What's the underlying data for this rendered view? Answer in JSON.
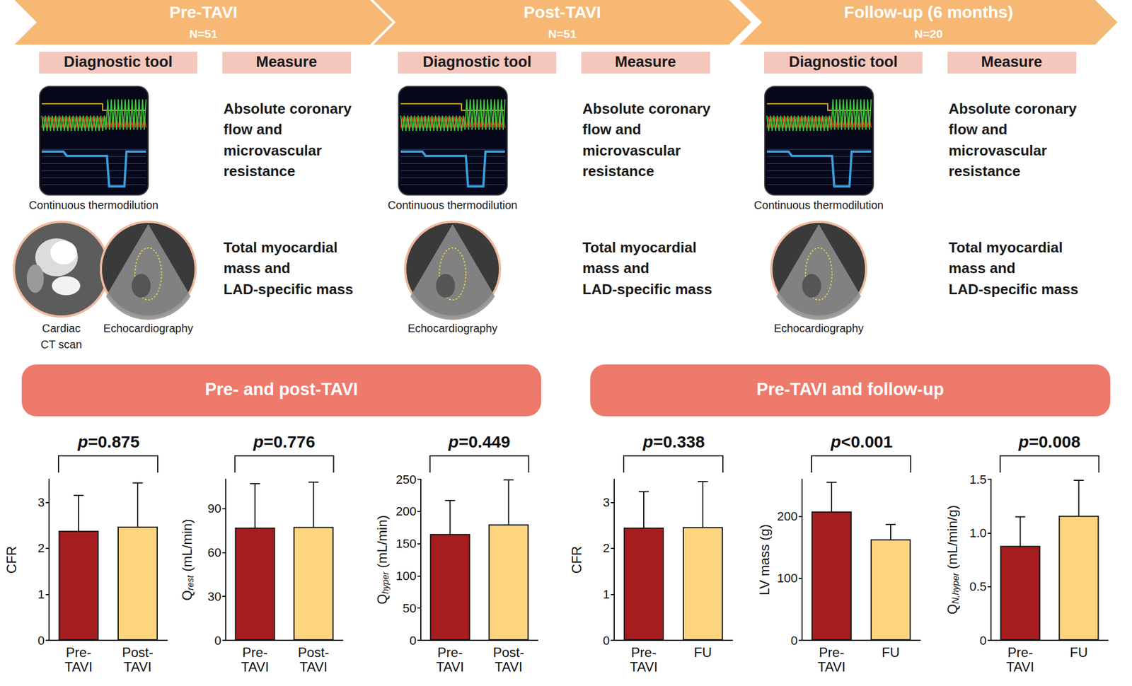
{
  "stages": [
    {
      "title": "Pre-TAVI",
      "n": "N=51",
      "tool_header": "Diagnostic tool",
      "measure_header": "Measure",
      "rows": [
        {
          "tools": [
            "Continuous thermodilution"
          ],
          "measure": [
            "Absolute coronary",
            "flow and",
            "microvascular",
            "resistance"
          ]
        },
        {
          "tools": [
            "Cardiac\nCT scan",
            "Echocardiography"
          ],
          "measure": [
            "Total myocardial",
            "mass and",
            "LAD-specific mass"
          ]
        }
      ]
    },
    {
      "title": "Post-TAVI",
      "n": "N=51",
      "tool_header": "Diagnostic tool",
      "measure_header": "Measure",
      "rows": [
        {
          "tools": [
            "Continuous thermodilution"
          ],
          "measure": [
            "Absolute coronary",
            "flow and",
            "microvascular",
            "resistance"
          ]
        },
        {
          "tools": [
            "Echocardiography"
          ],
          "measure": [
            "Total myocardial",
            "mass and",
            "LAD-specific mass"
          ]
        }
      ]
    },
    {
      "title": "Follow-up (6 months)",
      "n": "N=20",
      "tool_header": "Diagnostic tool",
      "measure_header": "Measure",
      "rows": [
        {
          "tools": [
            "Continuous thermodilution"
          ],
          "measure": [
            "Absolute coronary",
            "flow and",
            "microvascular",
            "resistance"
          ]
        },
        {
          "tools": [
            "Echocardiography"
          ],
          "measure": [
            "Total myocardial",
            "mass and",
            "LAD-specific mass"
          ]
        }
      ]
    }
  ],
  "comparisons": [
    "Pre- and post-TAVI",
    "Pre-TAVI and follow-up"
  ],
  "chart_data": [
    {
      "type": "bar",
      "title": "p=0.875",
      "categories": [
        "Pre-\nTAVI",
        "Post-\nTAVI"
      ],
      "values": [
        2.38,
        2.47
      ],
      "error": [
        0.77,
        0.95
      ],
      "colors": [
        "#a51d1f",
        "#fdd57f"
      ],
      "ylabel": "CFR",
      "ylim": [
        0,
        3.5
      ],
      "yticks": [
        0,
        1,
        2,
        3
      ],
      "grid": false
    },
    {
      "type": "bar",
      "title": "p=0.776",
      "categories": [
        "Pre-\nTAVI",
        "Post-\nTAVI"
      ],
      "values": [
        77,
        77.5
      ],
      "error": [
        30,
        30.5
      ],
      "colors": [
        "#a51d1f",
        "#fdd57f"
      ],
      "ylabel": {
        "text": "Q",
        "subscript": "rest",
        "suffix": " (mL/min)"
      },
      "ylim": [
        0,
        110
      ],
      "yticks": [
        0,
        30,
        60,
        90
      ],
      "grid": false
    },
    {
      "type": "bar",
      "title": "p=0.449",
      "categories": [
        "Pre-\nTAVI",
        "Post-\nTAVI"
      ],
      "values": [
        165,
        180
      ],
      "error": [
        52,
        69
      ],
      "colors": [
        "#a51d1f",
        "#fdd57f"
      ],
      "ylabel": {
        "text": "Q",
        "subscript": "hyper",
        "suffix": " (mL/min)"
      },
      "ylim": [
        0,
        250
      ],
      "yticks": [
        0,
        50,
        100,
        150,
        200,
        250
      ],
      "grid": false
    },
    {
      "type": "bar",
      "title": "p=0.338",
      "categories": [
        "Pre-\nTAVI",
        "FU"
      ],
      "values": [
        2.45,
        2.46
      ],
      "error": [
        0.78,
        0.99
      ],
      "colors": [
        "#a51d1f",
        "#fdd57f"
      ],
      "ylabel": "CFR",
      "ylim": [
        0,
        3.5
      ],
      "yticks": [
        0,
        1,
        2,
        3
      ],
      "grid": false
    },
    {
      "type": "bar",
      "title": "p<0.001",
      "categories": [
        "Pre-\nTAVI",
        "FU"
      ],
      "values": [
        208,
        163
      ],
      "error": [
        47,
        24
      ],
      "colors": [
        "#a51d1f",
        "#fdd57f"
      ],
      "ylabel": "LV mass (g)",
      "ylim": [
        0,
        260
      ],
      "yticks": [
        0,
        100,
        200
      ],
      "grid": false
    },
    {
      "type": "bar",
      "title": "p=0.008",
      "categories": [
        "Pre-\nTAVI",
        "FU"
      ],
      "values": [
        0.88,
        1.16
      ],
      "error": [
        0.27,
        0.33
      ],
      "colors": [
        "#a51d1f",
        "#fdd57f"
      ],
      "ylabel": {
        "text": "Q",
        "subscript": "N,hyper",
        "suffix": " (mL/min/g)"
      },
      "ylim": [
        0,
        1.5
      ],
      "yticks": [
        0,
        0.5,
        {
          "value": 1,
          "label": "1.0"
        },
        1.5
      ],
      "grid": false
    }
  ]
}
